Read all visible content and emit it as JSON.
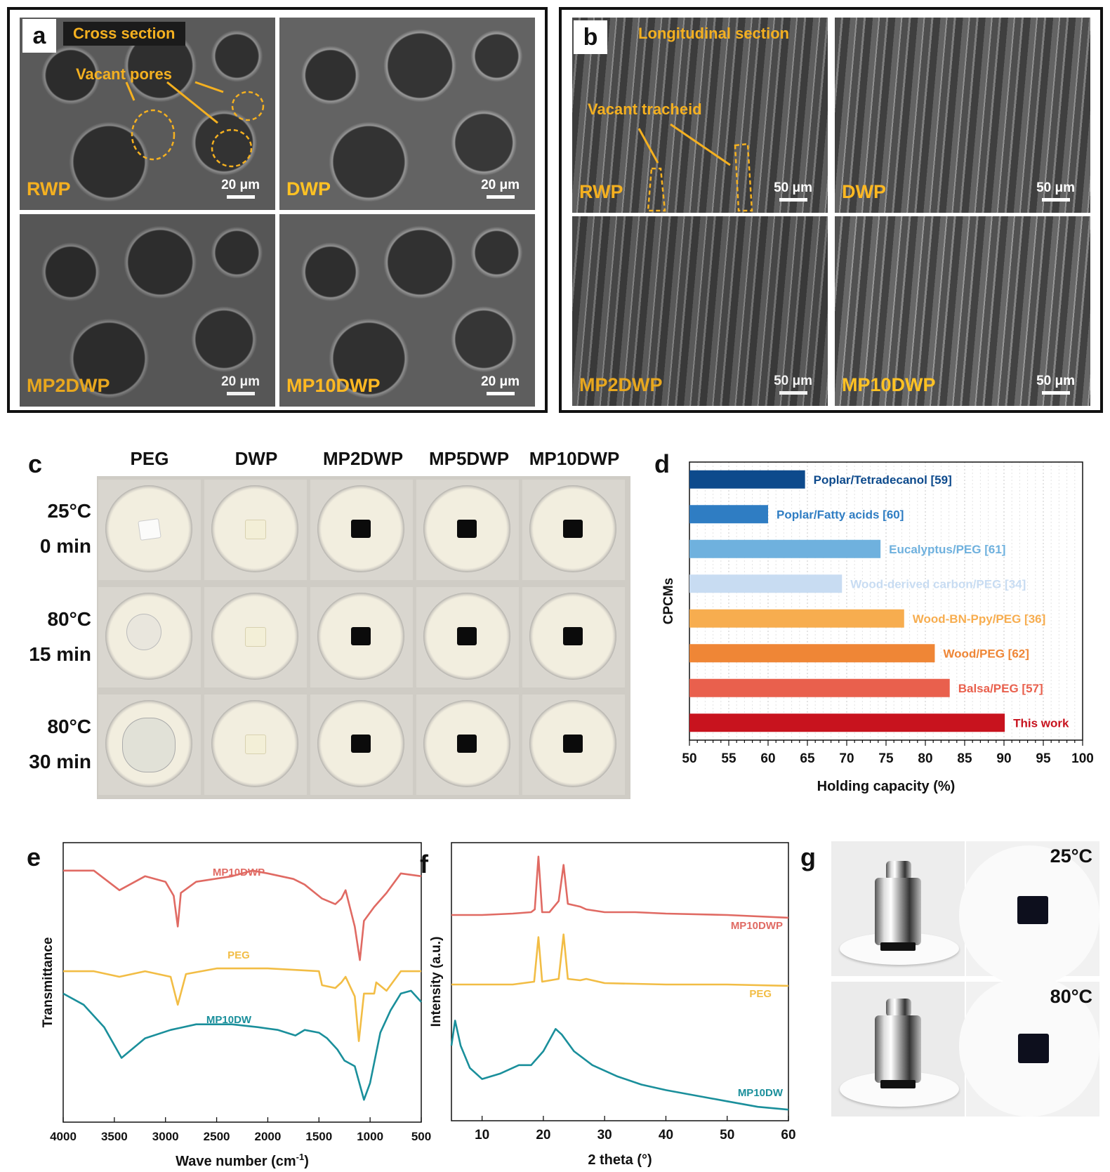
{
  "panel_a": {
    "letter": "a",
    "tag": "Cross section",
    "annotation": "Vacant pores",
    "images": [
      {
        "label": "RWP",
        "scale": "20 μm"
      },
      {
        "label": "DWP",
        "scale": "20 μm"
      },
      {
        "label": "MP2DWP",
        "scale": "20 μm"
      },
      {
        "label": "MP10DWP",
        "scale": "20 μm"
      }
    ]
  },
  "panel_b": {
    "letter": "b",
    "tag": "Longitudinal section",
    "annotation": "Vacant tracheid",
    "images": [
      {
        "label": "RWP",
        "scale": "50 μm"
      },
      {
        "label": "DWP",
        "scale": "50 μm"
      },
      {
        "label": "MP2DWP",
        "scale": "50 μm"
      },
      {
        "label": "MP10DWP",
        "scale": "50 μm"
      }
    ]
  },
  "panel_c": {
    "letter": "c",
    "columns": [
      "PEG",
      "DWP",
      "MP2DWP",
      "MP5DWP",
      "MP10DWP"
    ],
    "rows": [
      {
        "temp": "25°C",
        "time": "0 min"
      },
      {
        "temp": "80°C",
        "time": "15 min"
      },
      {
        "temp": "80°C",
        "time": "30 min"
      }
    ]
  },
  "panel_d": {
    "letter": "d",
    "chart_data": {
      "type": "bar",
      "orientation": "horizontal",
      "categories": [
        "Poplar/Tetradecanol [59]",
        "Poplar/Fatty acids [60]",
        "Eucalyptus/PEG [61]",
        "Wood-derived carbon/PEG [34]",
        "Wood-BN-Ppy/PEG [36]",
        "Wood/PEG [62]",
        "Balsa/PEG [57]",
        "This work"
      ],
      "values": [
        64.7,
        60.0,
        74.3,
        69.4,
        77.3,
        81.2,
        83.1,
        90.1
      ],
      "colors": [
        "#0d4a8c",
        "#2f7dc3",
        "#6fb1de",
        "#c8dcf2",
        "#f7ad4f",
        "#ef8636",
        "#e9604d",
        "#c8131e"
      ],
      "xlabel": "Holding capacity (%)",
      "ylabel": "CPCMs",
      "xlim": [
        50,
        100
      ],
      "xticks": [
        "50",
        "55",
        "60",
        "65",
        "70",
        "75",
        "80",
        "85",
        "90",
        "95",
        "100"
      ],
      "grid": "vertical dotted"
    }
  },
  "panel_e": {
    "letter": "e",
    "chart_data": {
      "type": "line",
      "xlabel": "Wave number (cm⁻¹)",
      "xlabel_main": "Wave number (cm",
      "xlabel_sup": "-1",
      "xlabel_close": ")",
      "ylabel": "Transmittance",
      "xlim": [
        4000,
        500
      ],
      "xticks": [
        "4000",
        "3500",
        "3000",
        "2500",
        "2000",
        "1500",
        "1000",
        "500"
      ],
      "series": [
        {
          "name": "MP10DWP",
          "color": "#e06a63",
          "points": [
            [
              4000,
              0.9
            ],
            [
              3700,
              0.9
            ],
            [
              3450,
              0.83
            ],
            [
              3200,
              0.88
            ],
            [
              3000,
              0.86
            ],
            [
              2920,
              0.81
            ],
            [
              2880,
              0.7
            ],
            [
              2850,
              0.82
            ],
            [
              2700,
              0.86
            ],
            [
              2350,
              0.88
            ],
            [
              2150,
              0.9
            ],
            [
              2000,
              0.89
            ],
            [
              1750,
              0.87
            ],
            [
              1640,
              0.85
            ],
            [
              1470,
              0.8
            ],
            [
              1340,
              0.78
            ],
            [
              1280,
              0.8
            ],
            [
              1240,
              0.83
            ],
            [
              1150,
              0.7
            ],
            [
              1100,
              0.58
            ],
            [
              1060,
              0.72
            ],
            [
              960,
              0.77
            ],
            [
              840,
              0.82
            ],
            [
              700,
              0.89
            ],
            [
              500,
              0.88
            ]
          ]
        },
        {
          "name": "PEG",
          "color": "#f2bd45",
          "points": [
            [
              4000,
              0.54
            ],
            [
              3700,
              0.54
            ],
            [
              3450,
              0.52
            ],
            [
              3200,
              0.54
            ],
            [
              2950,
              0.52
            ],
            [
              2880,
              0.42
            ],
            [
              2800,
              0.53
            ],
            [
              2500,
              0.55
            ],
            [
              2000,
              0.55
            ],
            [
              1500,
              0.54
            ],
            [
              1470,
              0.49
            ],
            [
              1340,
              0.48
            ],
            [
              1280,
              0.5
            ],
            [
              1240,
              0.52
            ],
            [
              1150,
              0.45
            ],
            [
              1110,
              0.29
            ],
            [
              1060,
              0.46
            ],
            [
              960,
              0.46
            ],
            [
              940,
              0.5
            ],
            [
              840,
              0.47
            ],
            [
              700,
              0.54
            ],
            [
              500,
              0.54
            ]
          ]
        },
        {
          "name": "MP10DW",
          "color": "#1a8f9b",
          "points": [
            [
              4000,
              0.46
            ],
            [
              3800,
              0.42
            ],
            [
              3600,
              0.34
            ],
            [
              3430,
              0.23
            ],
            [
              3200,
              0.3
            ],
            [
              2950,
              0.33
            ],
            [
              2700,
              0.35
            ],
            [
              2350,
              0.35
            ],
            [
              2100,
              0.34
            ],
            [
              1900,
              0.33
            ],
            [
              1730,
              0.31
            ],
            [
              1640,
              0.33
            ],
            [
              1500,
              0.32
            ],
            [
              1420,
              0.3
            ],
            [
              1320,
              0.26
            ],
            [
              1250,
              0.22
            ],
            [
              1150,
              0.2
            ],
            [
              1060,
              0.08
            ],
            [
              1000,
              0.14
            ],
            [
              900,
              0.32
            ],
            [
              800,
              0.4
            ],
            [
              700,
              0.46
            ],
            [
              600,
              0.47
            ],
            [
              500,
              0.43
            ]
          ]
        }
      ]
    }
  },
  "panel_f": {
    "letter": "f",
    "chart_data": {
      "type": "line",
      "xlabel": "2 theta (°)",
      "ylabel": "Intensity (a.u.)",
      "xlim": [
        5,
        60
      ],
      "xticks": [
        "10",
        "20",
        "30",
        "40",
        "50",
        "60"
      ],
      "series": [
        {
          "name": "MP10DWP",
          "color": "#e06a63",
          "points": [
            [
              5,
              0.74
            ],
            [
              10,
              0.74
            ],
            [
              15,
              0.745
            ],
            [
              18,
              0.75
            ],
            [
              18.6,
              0.76
            ],
            [
              19.2,
              0.95
            ],
            [
              19.8,
              0.75
            ],
            [
              21,
              0.75
            ],
            [
              22.5,
              0.79
            ],
            [
              23.3,
              0.92
            ],
            [
              24,
              0.78
            ],
            [
              26,
              0.77
            ],
            [
              27,
              0.76
            ],
            [
              30,
              0.75
            ],
            [
              35,
              0.75
            ],
            [
              40,
              0.745
            ],
            [
              50,
              0.74
            ],
            [
              60,
              0.73
            ]
          ]
        },
        {
          "name": "PEG",
          "color": "#f2bd45",
          "points": [
            [
              5,
              0.49
            ],
            [
              15,
              0.49
            ],
            [
              18.5,
              0.5
            ],
            [
              19.2,
              0.66
            ],
            [
              19.8,
              0.5
            ],
            [
              22.5,
              0.51
            ],
            [
              23.3,
              0.67
            ],
            [
              24,
              0.51
            ],
            [
              26,
              0.505
            ],
            [
              27,
              0.51
            ],
            [
              30,
              0.495
            ],
            [
              40,
              0.49
            ],
            [
              50,
              0.49
            ],
            [
              60,
              0.485
            ]
          ]
        },
        {
          "name": "MP10DW",
          "color": "#1a8f9b",
          "points": [
            [
              5,
              0.27
            ],
            [
              5.6,
              0.36
            ],
            [
              6.5,
              0.27
            ],
            [
              8,
              0.19
            ],
            [
              10,
              0.15
            ],
            [
              13,
              0.17
            ],
            [
              16,
              0.2
            ],
            [
              18,
              0.2
            ],
            [
              20,
              0.25
            ],
            [
              22,
              0.33
            ],
            [
              23,
              0.31
            ],
            [
              25,
              0.25
            ],
            [
              28,
              0.2
            ],
            [
              32,
              0.16
            ],
            [
              36,
              0.13
            ],
            [
              40,
              0.11
            ],
            [
              45,
              0.09
            ],
            [
              50,
              0.07
            ],
            [
              55,
              0.05
            ],
            [
              60,
              0.04
            ]
          ]
        }
      ]
    }
  },
  "panel_g": {
    "letter": "g",
    "temps": [
      "25°C",
      "80°C"
    ]
  }
}
